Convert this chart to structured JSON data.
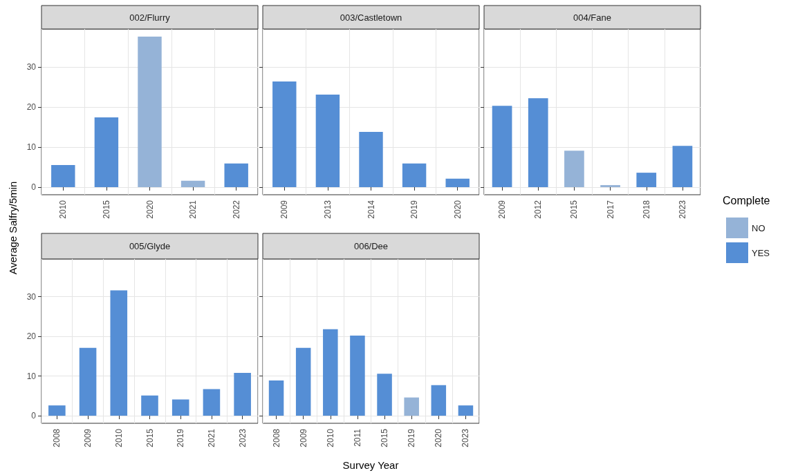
{
  "chart_data": [
    {
      "type": "bar",
      "title": "002/Flurry",
      "ylabel": "Average Salfry/5min",
      "categories": [
        "2010",
        "2015",
        "2020",
        "2021",
        "2022"
      ],
      "stacked": true,
      "grid": true,
      "ylim": [
        -1.9,
        39.5
      ],
      "yticks": [
        0,
        10,
        20,
        30
      ],
      "series": [
        {
          "color": "#95b3d7",
          "values": [
            null,
            null,
            37.6,
            1.6,
            null
          ]
        },
        {
          "color": "#558ed5",
          "values": [
            5.5,
            17.4,
            null,
            null,
            5.9
          ]
        }
      ]
    },
    {
      "type": "bar",
      "title": "003/Castletown",
      "categories": [
        "2009",
        "2013",
        "2014",
        "2019",
        "2020"
      ],
      "grid": true,
      "ylim": [
        -1.9,
        39.5
      ],
      "yticks": [
        0,
        10,
        20,
        30
      ],
      "tick_labels": "x",
      "series": [
        {
          "color": "#558ed5",
          "values": [
            26.4,
            23.1,
            13.8,
            5.9,
            2.1
          ]
        }
      ]
    },
    {
      "type": "bar",
      "title": "004/Fane",
      "categories": [
        "2009",
        "2012",
        "2015",
        "2017",
        "2018",
        "2023"
      ],
      "stacked": true,
      "grid": true,
      "ylim": [
        -1.9,
        39.5
      ],
      "yticks": [
        0,
        10,
        20,
        30
      ],
      "tick_labels": "x",
      "legend": "right",
      "legend_title": "Complete",
      "series": [
        {
          "name": "NO",
          "color": "#95b3d7",
          "values": [
            null,
            null,
            9.1,
            0.5,
            null,
            null
          ]
        },
        {
          "name": "YES",
          "color": "#558ed5",
          "values": [
            20.3,
            22.2,
            null,
            null,
            3.6,
            10.3
          ]
        }
      ]
    },
    {
      "type": "bar",
      "title": "005/Glyde",
      "categories": [
        "2008",
        "2009",
        "2010",
        "2015",
        "2019",
        "2021",
        "2023"
      ],
      "grid": true,
      "ylim": [
        -1.9,
        39.5
      ],
      "yticks": [
        0,
        10,
        20,
        30
      ],
      "series": [
        {
          "color": "#558ed5",
          "values": [
            2.6,
            17.1,
            31.6,
            5.1,
            4.1,
            6.7,
            10.8
          ]
        }
      ]
    },
    {
      "type": "bar",
      "title": "006/Dee",
      "xlabel": "Survey Year",
      "categories": [
        "2008",
        "2009",
        "2010",
        "2011",
        "2015",
        "2019",
        "2020",
        "2023"
      ],
      "stacked": true,
      "grid": true,
      "ylim": [
        -1.9,
        39.5
      ],
      "yticks": [
        0,
        10,
        20,
        30
      ],
      "tick_labels": "x",
      "series": [
        {
          "color": "#95b3d7",
          "values": [
            null,
            null,
            null,
            null,
            null,
            4.6,
            null,
            null
          ]
        },
        {
          "color": "#558ed5",
          "values": [
            8.9,
            17.1,
            21.8,
            20.2,
            10.6,
            null,
            7.7,
            2.6
          ]
        }
      ]
    }
  ]
}
